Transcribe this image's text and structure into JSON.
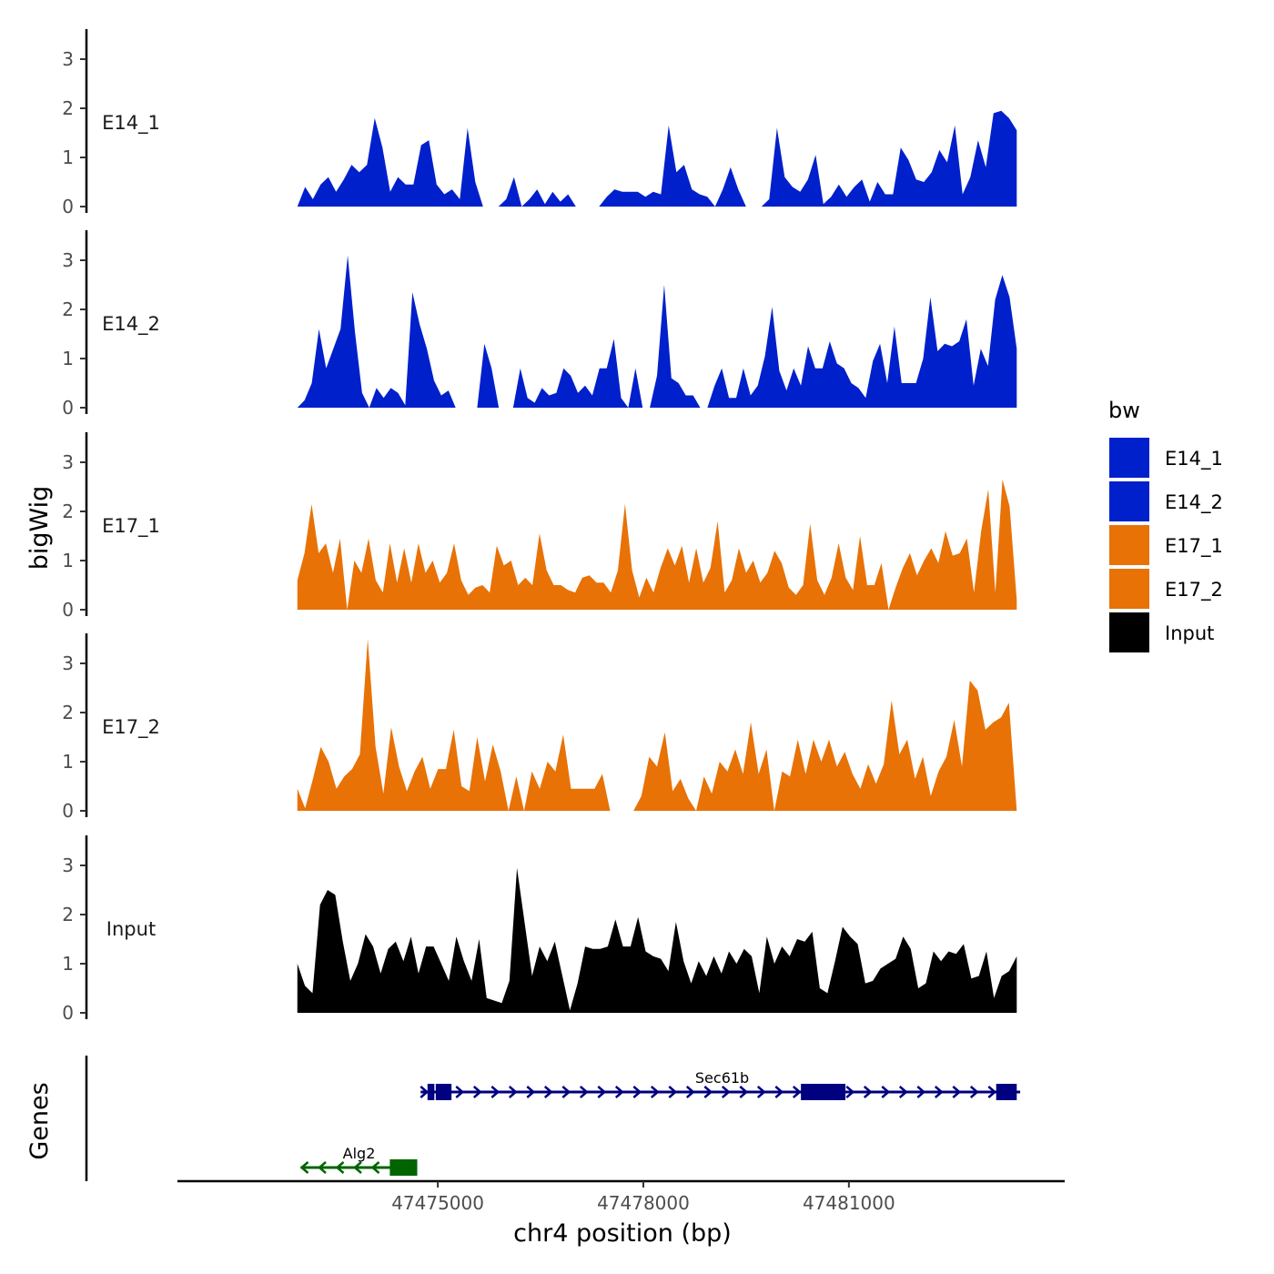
{
  "chart_data": {
    "type": "area",
    "chrom": "chr4",
    "xlabel": "chr4 position (bp)",
    "ylabel": "bigWig",
    "genes_label": "Genes",
    "xlim": [
      47471200,
      47484150
    ],
    "x_ticks": [
      47475000,
      47478000,
      47481000
    ],
    "x_tick_labels": [
      "47475000",
      "47478000",
      "47481000"
    ],
    "ylim": [
      0,
      3.6
    ],
    "y_ticks": [
      0,
      1,
      2,
      3
    ],
    "y_tick_labels": [
      "0",
      "1",
      "2",
      "3"
    ],
    "track_start": 47472950,
    "track_end": 47483450,
    "legend": {
      "title": "bw",
      "placement": "right"
    },
    "series": [
      {
        "name": "E14_1",
        "color": "#0020CC",
        "values": [
          0,
          0.4,
          0.15,
          0.45,
          0.6,
          0.3,
          0.55,
          0.85,
          0.7,
          0.85,
          1.8,
          1.2,
          0.3,
          0.6,
          0.45,
          0.45,
          1.25,
          1.35,
          0.45,
          0.25,
          0.35,
          0.15,
          1.6,
          0.5,
          0,
          0,
          0,
          0.15,
          0.6,
          0,
          0.15,
          0.35,
          0.05,
          0.3,
          0.1,
          0.25,
          0,
          0,
          0,
          0,
          0.2,
          0.35,
          0.3,
          0.3,
          0.3,
          0.2,
          0.3,
          0.25,
          1.65,
          0.7,
          0.85,
          0.35,
          0.25,
          0.2,
          0,
          0.35,
          0.8,
          0.35,
          0,
          0,
          0,
          0.15,
          1.6,
          0.6,
          0.4,
          0.3,
          0.55,
          1.05,
          0.05,
          0.2,
          0.45,
          0.2,
          0.4,
          0.55,
          0.1,
          0.5,
          0.25,
          0.25,
          1.2,
          0.95,
          0.55,
          0.5,
          0.7,
          1.15,
          0.9,
          1.65,
          0.25,
          0.6,
          1.35,
          0.8,
          1.9,
          1.95,
          1.8,
          1.55
        ]
      },
      {
        "name": "E14_2",
        "color": "#0020CC",
        "values": [
          0,
          0.15,
          0.5,
          1.6,
          0.8,
          1.2,
          1.6,
          3.1,
          1.55,
          0.3,
          0,
          0.4,
          0.2,
          0.4,
          0.3,
          0.05,
          2.35,
          1.7,
          1.2,
          0.55,
          0.25,
          0.35,
          0,
          0,
          0,
          0,
          1.3,
          0.8,
          0,
          0,
          0,
          0.8,
          0.2,
          0.1,
          0.4,
          0.25,
          0.3,
          0.8,
          0.65,
          0.3,
          0.45,
          0.25,
          0.8,
          0.8,
          1.4,
          0.2,
          0,
          0.8,
          0,
          0,
          0.65,
          2.5,
          0.6,
          0.5,
          0.25,
          0.25,
          0,
          0,
          0.45,
          0.8,
          0.2,
          0.2,
          0.8,
          0.25,
          0.45,
          1.05,
          2.05,
          0.75,
          0.35,
          0.8,
          0.45,
          1.25,
          0.8,
          0.8,
          1.35,
          0.9,
          0.8,
          0.5,
          0.4,
          0.2,
          0.95,
          1.3,
          0.5,
          1.65,
          0.5,
          0.5,
          0.5,
          1.0,
          2.25,
          1.15,
          1.3,
          1.25,
          1.35,
          1.8,
          0.45,
          1.2,
          0.85,
          2.2,
          2.7,
          2.25,
          1.2
        ]
      },
      {
        "name": "E17_1",
        "color": "#E87206",
        "values": [
          0.6,
          1.15,
          2.15,
          1.15,
          1.35,
          0.75,
          1.45,
          0,
          1.0,
          0.75,
          1.45,
          0.6,
          0.35,
          1.35,
          0.55,
          1.25,
          0.55,
          1.35,
          0.75,
          1.0,
          0.55,
          0.75,
          1.35,
          0.6,
          0.3,
          0.45,
          0.5,
          0.35,
          1.3,
          0.9,
          1.0,
          0.5,
          0.65,
          0.5,
          1.55,
          0.8,
          0.5,
          0.5,
          0.4,
          0.35,
          0.65,
          0.7,
          0.55,
          0.55,
          0.35,
          0.8,
          2.15,
          0.8,
          0.25,
          0.65,
          0.35,
          0.85,
          1.25,
          0.9,
          1.3,
          0.55,
          1.25,
          0.55,
          0.85,
          1.8,
          0.35,
          0.6,
          1.25,
          0.75,
          1.0,
          0.55,
          0.75,
          1.2,
          0.95,
          0.45,
          0.3,
          0.5,
          1.75,
          0.6,
          0.3,
          0.65,
          1.35,
          0.65,
          0.4,
          1.5,
          0.5,
          0.5,
          0.95,
          0,
          0.45,
          0.85,
          1.15,
          0.7,
          1.0,
          1.25,
          0.95,
          1.6,
          1.1,
          1.15,
          1.45,
          0.35,
          1.6,
          2.45,
          0.35,
          2.65,
          2.1,
          0.2
        ]
      },
      {
        "name": "E17_2",
        "color": "#E87206",
        "values": [
          0.45,
          0.05,
          0.65,
          1.3,
          1.0,
          0.45,
          0.7,
          0.85,
          1.15,
          3.5,
          1.3,
          0.35,
          1.7,
          0.9,
          0.4,
          0.8,
          1.1,
          0.45,
          0.85,
          0.85,
          1.65,
          0.5,
          0.4,
          1.5,
          0.6,
          1.35,
          0.8,
          0,
          0.7,
          0,
          0.8,
          0.45,
          1.0,
          0.8,
          1.55,
          0.45,
          0.45,
          0.45,
          0.45,
          0.75,
          0,
          0,
          0,
          0,
          0.3,
          1.1,
          0.9,
          1.6,
          0.4,
          0.65,
          0.25,
          0,
          0.7,
          0.35,
          1.0,
          0.8,
          1.25,
          0.75,
          1.8,
          0.75,
          1.25,
          0,
          0.8,
          0.7,
          1.45,
          0.75,
          1.45,
          1.0,
          1.45,
          0.9,
          1.2,
          0.75,
          0.45,
          0.95,
          0.55,
          0.95,
          2.25,
          1.15,
          1.45,
          0.65,
          1.1,
          0.3,
          0.8,
          1.1,
          1.85,
          0.9,
          2.65,
          2.45,
          1.65,
          1.8,
          1.9,
          2.2,
          0
        ]
      },
      {
        "name": "Input",
        "color": "#000000",
        "values": [
          1.0,
          0.55,
          0.4,
          2.2,
          2.5,
          2.4,
          1.45,
          0.65,
          1.0,
          1.6,
          1.35,
          0.8,
          1.3,
          1.45,
          1.05,
          1.55,
          0.8,
          1.35,
          1.35,
          1.0,
          0.65,
          1.55,
          1.05,
          0.65,
          1.5,
          0.3,
          0.25,
          0.2,
          0.65,
          2.95,
          1.85,
          0.75,
          1.35,
          1.05,
          1.45,
          0.75,
          0.05,
          0.6,
          1.35,
          1.3,
          1.3,
          1.35,
          1.9,
          1.35,
          1.35,
          1.95,
          1.25,
          1.15,
          1.1,
          0.85,
          1.85,
          1.05,
          0.6,
          1.05,
          0.75,
          1.15,
          0.8,
          1.25,
          1.0,
          1.3,
          1.15,
          0.4,
          1.55,
          1.0,
          1.35,
          1.15,
          1.5,
          1.45,
          1.65,
          0.5,
          0.4,
          1.05,
          1.75,
          1.55,
          1.4,
          0.6,
          0.65,
          0.9,
          1.0,
          1.1,
          1.55,
          1.3,
          0.5,
          0.6,
          1.25,
          1.05,
          1.25,
          1.2,
          1.4,
          0.7,
          0.75,
          1.25,
          0.3,
          0.75,
          0.85,
          1.15
        ]
      }
    ],
    "genes": [
      {
        "name": "Alg2",
        "color": "#006400",
        "start": 47473000,
        "end": 47474700,
        "strand": "-",
        "exons": [
          [
            47474300,
            47474700
          ]
        ]
      },
      {
        "name": "Sec61b",
        "color": "#000080",
        "start": 47474750,
        "end": 47483500,
        "strand": "+",
        "exons": [
          [
            47474850,
            47474950
          ],
          [
            47474970,
            47475200
          ],
          [
            47480300,
            47480950
          ],
          [
            47483150,
            47483450
          ]
        ]
      }
    ]
  }
}
